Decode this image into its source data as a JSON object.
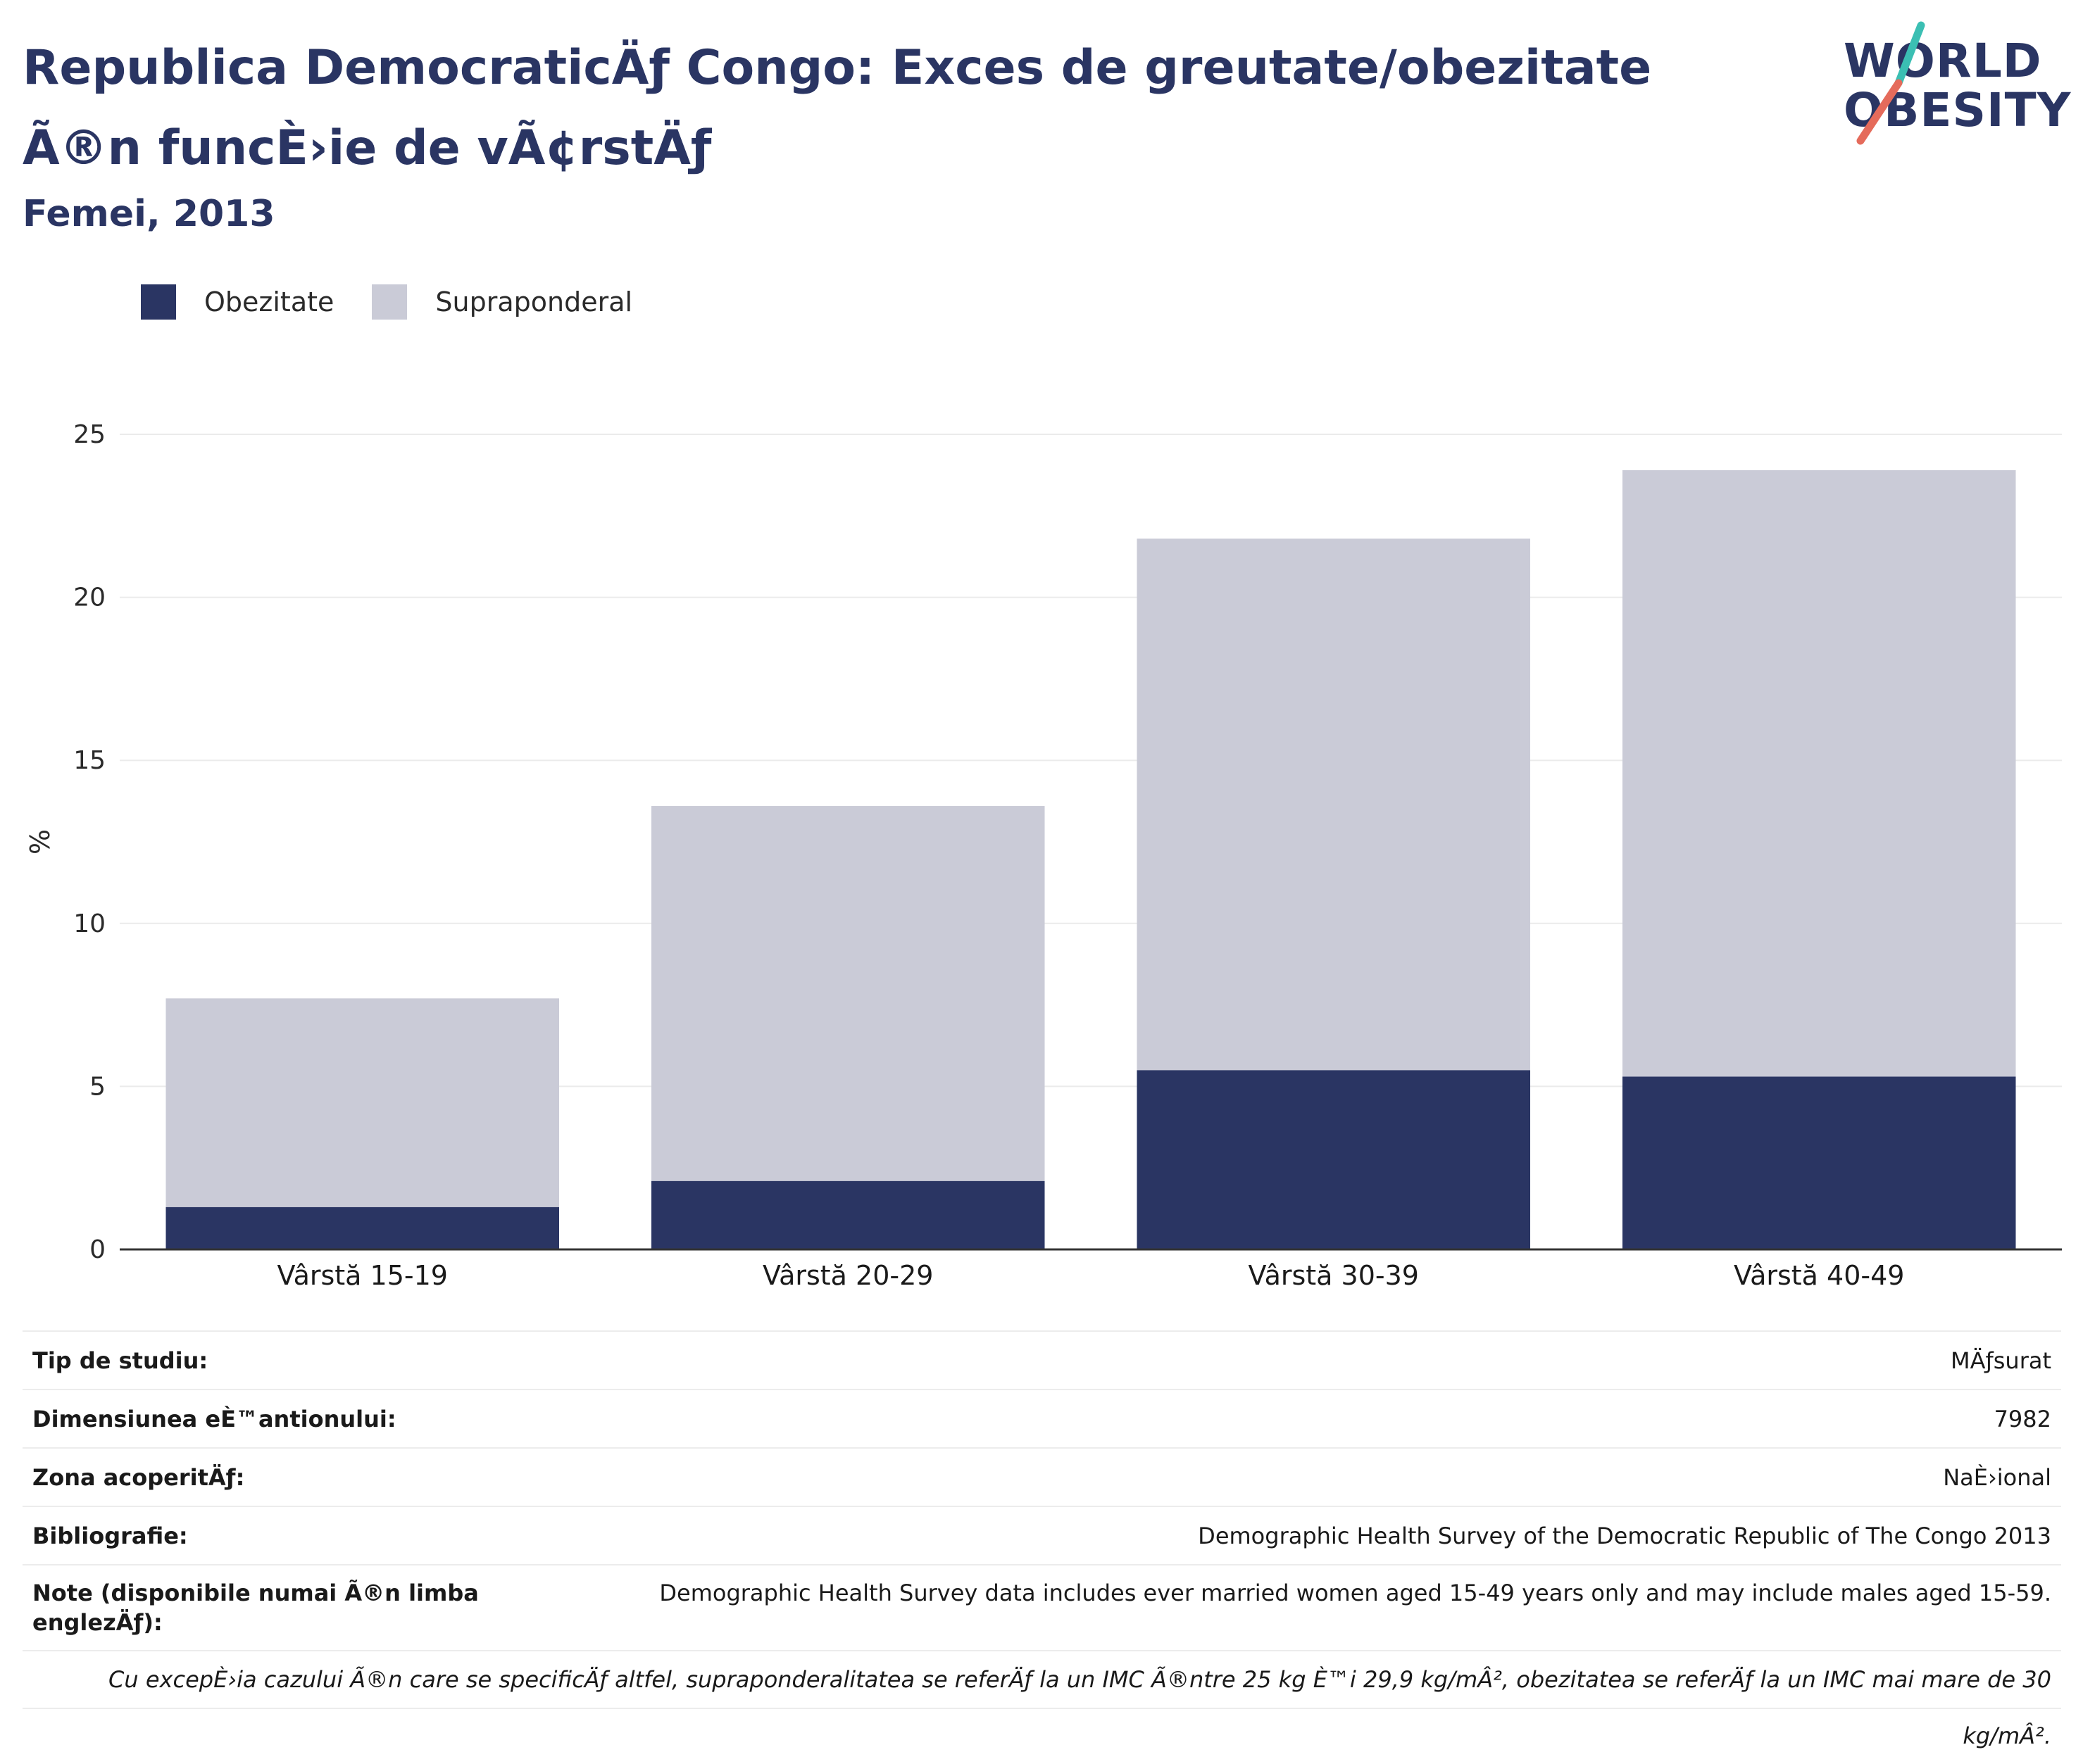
{
  "header": {
    "title": "Republica DemocraticÄƒ Congo: Exces de greutate/obezitate Ã®n funcÈ›ie de vÃ¢rstÄƒ",
    "subtitle": "Femei, 2013"
  },
  "logo": {
    "line1": "WORLD",
    "line2": "OBESITY",
    "colors": {
      "teal": "#3bbfb3",
      "coral": "#e56b5b"
    }
  },
  "legend": [
    {
      "label": "Obezitate",
      "color": "#2a3563"
    },
    {
      "label": "Supraponderal",
      "color": "#cacbd7"
    }
  ],
  "chart_data": {
    "type": "bar",
    "stacked": true,
    "categories": [
      "Vârstă 15-19",
      "Vârstă 20-29",
      "Vârstă 30-39",
      "Vârstă 40-49"
    ],
    "series": [
      {
        "name": "Obezitate",
        "values": [
          1.3,
          2.1,
          5.5,
          5.3
        ],
        "color": "#2a3563"
      },
      {
        "name": "Supraponderal",
        "values": [
          6.4,
          11.5,
          16.3,
          18.6
        ],
        "color": "#cacbd7"
      }
    ],
    "ylabel": "%",
    "ylim": [
      0,
      25
    ],
    "yticks": [
      0,
      5,
      10,
      15,
      20,
      25
    ],
    "grid": true,
    "legend_position": "top-left"
  },
  "info": [
    {
      "label": "Tip de studiu:",
      "value": "MÄƒsurat"
    },
    {
      "label": "Dimensiunea eÈ™antionului:",
      "value": "7982"
    },
    {
      "label": "Zona acoperitÄƒ:",
      "value": "NaÈ›ional"
    },
    {
      "label": "Bibliografie:",
      "value": "Demographic Health Survey of the Democratic Republic of The Congo 2013"
    },
    {
      "label": "Note (disponibile numai Ã®n limba englezÄƒ):",
      "value": "Demographic Health Survey data includes ever married women aged 15-49 years only and may include males aged 15-59."
    }
  ],
  "footnote": "Cu excepÈ›ia cazului Ã®n care se specificÄƒ altfel, supraponderalitatea se referÄƒ la un IMC Ã®ntre 25 kg È™i 29,9 kg/mÂ², obezitatea se referÄƒ la un IMC mai mare de 30 kg/mÂ²."
}
